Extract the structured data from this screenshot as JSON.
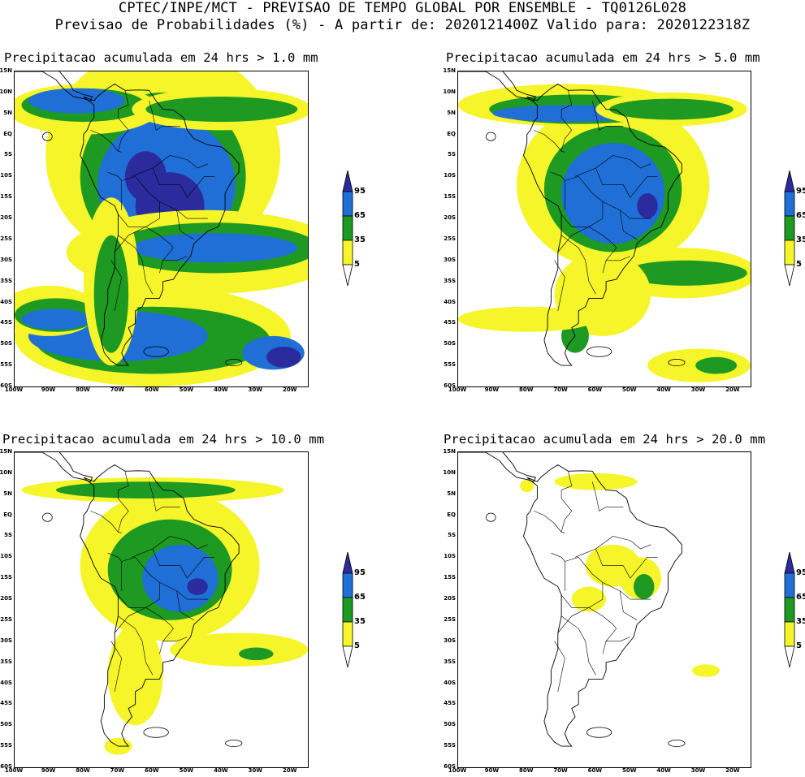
{
  "header": {
    "line1": "CPTEC/INPE/MCT - PREVISAO DE TEMPO GLOBAL POR ENSEMBLE - TQ0126L028",
    "line2": "Previsao de Probabilidades (%) -  A partir de: 2020121400Z  Valido para: 2020122318Z"
  },
  "axes": {
    "lat_labels": [
      "15N",
      "10N",
      "5N",
      "EQ",
      "5S",
      "10S",
      "15S",
      "20S",
      "25S",
      "30S",
      "35S",
      "40S",
      "45S",
      "50S",
      "55S",
      "60S"
    ],
    "lon_labels": [
      "100W",
      "90W",
      "80W",
      "70W",
      "60W",
      "50W",
      "40W",
      "30W",
      "20W"
    ]
  },
  "legend": {
    "labels": [
      "95",
      "65",
      "35",
      "5"
    ],
    "colors": {
      "c95": "#2b2b9e",
      "c65": "#1f6fd6",
      "c35": "#1e9a22",
      "c5": "#f5f52a"
    }
  },
  "colors": {
    "yellow": "#f5f52a",
    "green": "#1e9a22",
    "blue": "#1f6fd6",
    "navy": "#2b2b9e",
    "outline": "#000000"
  },
  "panels": [
    {
      "title": "Precipitacao acumulada em 24 hrs > 1.0 mm"
    },
    {
      "title": "Precipitacao acumulada em 24 hrs > 5.0 mm"
    },
    {
      "title": "Precipitacao acumulada em 24 hrs > 10.0 mm"
    },
    {
      "title": "Precipitacao acumulada em 24 hrs > 20.0 mm"
    }
  ]
}
